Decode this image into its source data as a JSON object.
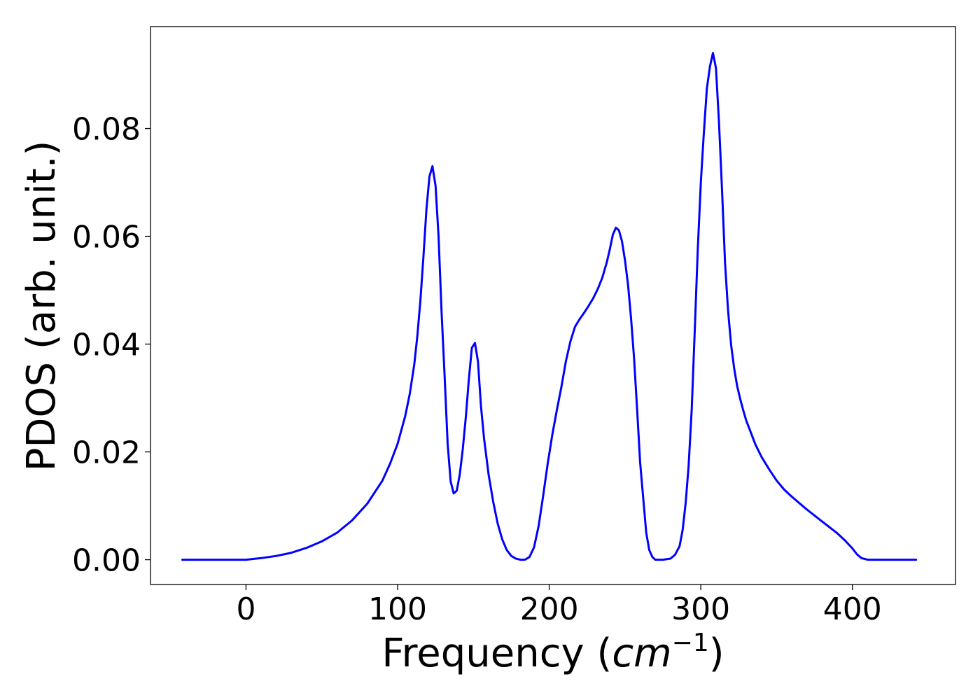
{
  "chart_data": {
    "type": "line",
    "title": "",
    "xlabel": "Frequency (",
    "xlabel_math": "cm",
    "xlabel_sup": "−1",
    "xlabel_close": ")",
    "ylabel": "PDOS (arb. unit.)",
    "xlim": [
      -63,
      468
    ],
    "ylim": [
      -0.0046,
      0.0989
    ],
    "xticks": [
      0,
      100,
      200,
      300,
      400
    ],
    "xtick_labels": [
      "0",
      "100",
      "200",
      "300",
      "400"
    ],
    "yticks": [
      0.0,
      0.02,
      0.04,
      0.06,
      0.08
    ],
    "ytick_labels": [
      "0.00",
      "0.02",
      "0.04",
      "0.06",
      "0.08"
    ],
    "grid": false,
    "series": [
      {
        "color": "#0000ff",
        "x": [
          -42,
          0,
          10,
          20,
          30,
          40,
          50,
          60,
          70,
          80,
          90,
          95,
          100,
          105,
          108,
          111,
          113,
          115,
          117,
          119,
          121,
          123,
          125,
          127,
          129,
          131,
          133,
          135,
          137,
          139,
          141,
          143,
          145,
          147,
          149,
          151,
          153,
          155,
          157,
          160,
          163,
          166,
          169,
          172,
          175,
          178,
          181,
          184,
          187,
          190,
          193,
          196,
          199,
          202,
          205,
          208,
          211,
          214,
          217,
          220,
          223,
          226,
          229,
          232,
          235,
          238,
          240,
          242,
          244,
          246,
          248,
          250,
          252,
          254,
          256,
          258,
          260,
          262,
          264,
          266,
          268,
          270,
          272,
          275,
          280,
          283,
          286,
          288,
          290,
          292,
          294,
          296,
          298,
          300,
          302,
          304,
          306,
          308,
          310,
          312,
          314,
          316,
          318,
          320,
          322,
          324,
          326,
          328,
          330,
          333,
          336,
          340,
          345,
          350,
          355,
          360,
          370,
          380,
          390,
          395,
          400,
          403,
          406,
          410,
          420,
          442
        ],
        "y": [
          0.0,
          0.0,
          0.0003,
          0.0007,
          0.0013,
          0.0022,
          0.0034,
          0.005,
          0.0073,
          0.0104,
          0.0147,
          0.0178,
          0.0215,
          0.0266,
          0.0307,
          0.0362,
          0.0415,
          0.048,
          0.056,
          0.065,
          0.0711,
          0.073,
          0.0694,
          0.06,
          0.046,
          0.034,
          0.0215,
          0.0145,
          0.0123,
          0.0128,
          0.0158,
          0.0205,
          0.0265,
          0.0335,
          0.0393,
          0.0402,
          0.0368,
          0.0285,
          0.0225,
          0.0158,
          0.0108,
          0.0067,
          0.0038,
          0.0018,
          0.0007,
          0.0002,
          0.0,
          0.0,
          0.0005,
          0.0023,
          0.0062,
          0.0118,
          0.0178,
          0.0231,
          0.0277,
          0.032,
          0.0368,
          0.0405,
          0.0432,
          0.0446,
          0.0458,
          0.0471,
          0.0485,
          0.0502,
          0.0523,
          0.0552,
          0.0576,
          0.0603,
          0.0616,
          0.0611,
          0.0591,
          0.0555,
          0.051,
          0.0448,
          0.0372,
          0.0278,
          0.018,
          0.0114,
          0.005,
          0.0018,
          0.0005,
          0.0,
          0.0,
          0.0,
          0.0002,
          0.0009,
          0.0025,
          0.0055,
          0.0105,
          0.0175,
          0.028,
          0.0425,
          0.0575,
          0.07,
          0.0792,
          0.0874,
          0.0915,
          0.094,
          0.0912,
          0.0812,
          0.0685,
          0.055,
          0.0462,
          0.0398,
          0.0355,
          0.0322,
          0.0298,
          0.0277,
          0.0258,
          0.0236,
          0.0214,
          0.0191,
          0.0168,
          0.0147,
          0.013,
          0.0117,
          0.0093,
          0.0071,
          0.0049,
          0.0036,
          0.0021,
          0.001,
          0.0003,
          0.0,
          0.0,
          0.0
        ]
      }
    ]
  }
}
